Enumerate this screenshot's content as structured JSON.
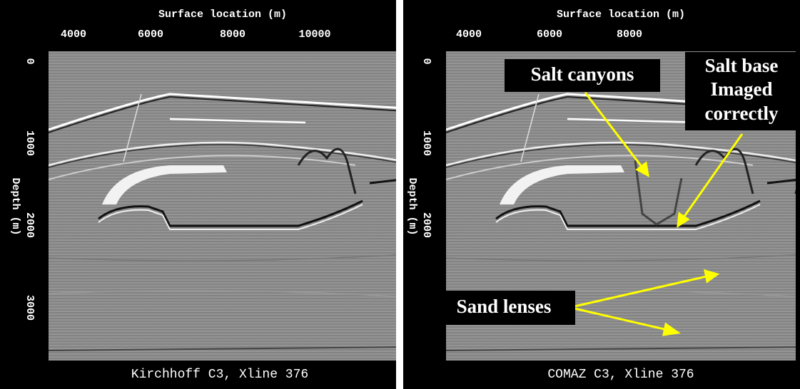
{
  "panels": [
    {
      "x_axis_label": "Surface location (m)",
      "x_ticks": [
        "4000",
        "6000",
        "8000",
        "10000"
      ],
      "y_axis_label": "Depth (m)",
      "y_ticks": [
        "0",
        "1000",
        "2000",
        "3000"
      ],
      "caption": "Kirchhoff C3, Xline 376"
    },
    {
      "x_axis_label": "Surface location (m)",
      "x_ticks": [
        "4000",
        "6000",
        "8000"
      ],
      "y_axis_label": "Depth (m)",
      "y_ticks": [
        "0",
        "1000",
        "2000"
      ],
      "caption": "COMAZ C3, Xline 376"
    }
  ],
  "annotations": {
    "salt_canyons": "Salt canyons",
    "salt_base": [
      "Salt base",
      "Imaged",
      "correctly"
    ],
    "sand_lenses": "Sand lenses"
  }
}
